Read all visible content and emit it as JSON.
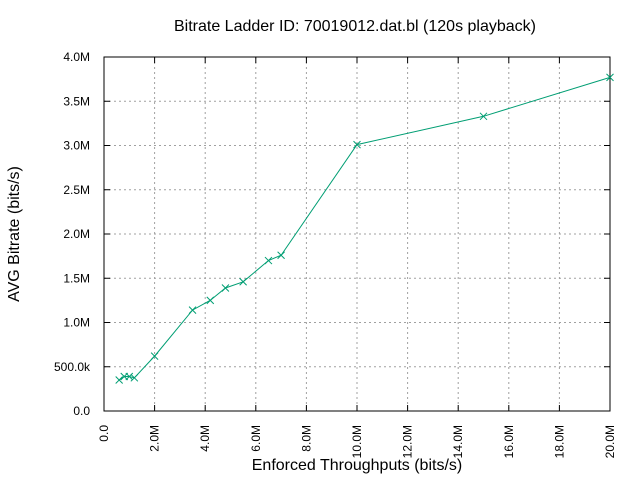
{
  "chart_data": {
    "type": "line",
    "title": "Bitrate Ladder ID: 70019012.dat.bl (120s playback)",
    "xlabel": "Enforced Throughputs (bits/s)",
    "ylabel": "AVG Bitrate (bits/s)",
    "xlim": [
      0,
      20000000
    ],
    "ylim": [
      0,
      4000000
    ],
    "grid": true,
    "x_ticks": [
      {
        "value": 0,
        "label": "0.0"
      },
      {
        "value": 2000000,
        "label": "2.0M"
      },
      {
        "value": 4000000,
        "label": "4.0M"
      },
      {
        "value": 6000000,
        "label": "6.0M"
      },
      {
        "value": 8000000,
        "label": "8.0M"
      },
      {
        "value": 10000000,
        "label": "10.0M"
      },
      {
        "value": 12000000,
        "label": "12.0M"
      },
      {
        "value": 14000000,
        "label": "14.0M"
      },
      {
        "value": 16000000,
        "label": "16.0M"
      },
      {
        "value": 18000000,
        "label": "18.0M"
      },
      {
        "value": 20000000,
        "label": "20.0M"
      }
    ],
    "y_ticks": [
      {
        "value": 0,
        "label": "0.0"
      },
      {
        "value": 500000,
        "label": "500.0k"
      },
      {
        "value": 1000000,
        "label": "1.0M"
      },
      {
        "value": 1500000,
        "label": "1.5M"
      },
      {
        "value": 2000000,
        "label": "2.0M"
      },
      {
        "value": 2500000,
        "label": "2.5M"
      },
      {
        "value": 3000000,
        "label": "3.0M"
      },
      {
        "value": 3500000,
        "label": "3.5M"
      },
      {
        "value": 4000000,
        "label": "4.0M"
      }
    ],
    "series": [
      {
        "color": "#009e73",
        "marker": "x",
        "points": [
          {
            "x": 600000,
            "y": 350000
          },
          {
            "x": 800000,
            "y": 390000
          },
          {
            "x": 1000000,
            "y": 390000
          },
          {
            "x": 1200000,
            "y": 375000
          },
          {
            "x": 2000000,
            "y": 620000
          },
          {
            "x": 3500000,
            "y": 1140000
          },
          {
            "x": 4200000,
            "y": 1250000
          },
          {
            "x": 4800000,
            "y": 1390000
          },
          {
            "x": 5500000,
            "y": 1460000
          },
          {
            "x": 6500000,
            "y": 1700000
          },
          {
            "x": 7000000,
            "y": 1760000
          },
          {
            "x": 10000000,
            "y": 3010000
          },
          {
            "x": 15000000,
            "y": 3330000
          },
          {
            "x": 20000000,
            "y": 3770000
          }
        ]
      }
    ]
  }
}
